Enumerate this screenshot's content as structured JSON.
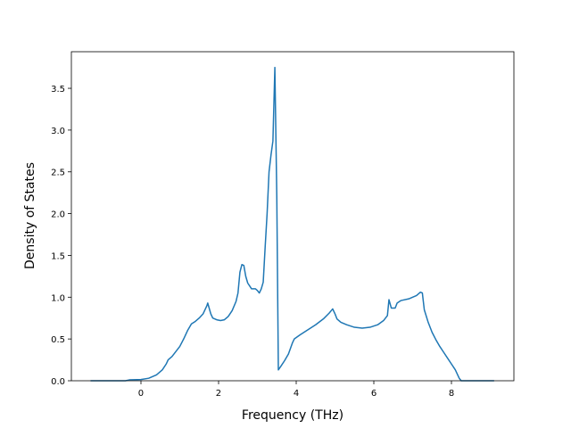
{
  "chart_data": {
    "type": "line",
    "x_label": "Frequency (THz)",
    "y_label": "Density of States",
    "x": [
      -1.3,
      -0.4,
      -0.3,
      0,
      0.2,
      0.4,
      0.55,
      0.65,
      0.7,
      0.8,
      0.9,
      1.0,
      1.1,
      1.2,
      1.3,
      1.4,
      1.5,
      1.6,
      1.7,
      1.72,
      1.8,
      1.85,
      1.95,
      2.05,
      2.15,
      2.25,
      2.35,
      2.45,
      2.5,
      2.55,
      2.6,
      2.65,
      2.7,
      2.75,
      2.85,
      2.95,
      3.0,
      3.05,
      3.1,
      3.15,
      3.2,
      3.25,
      3.3,
      3.35,
      3.4,
      3.45,
      3.5,
      3.54,
      3.6,
      3.7,
      3.8,
      3.9,
      3.95,
      4.1,
      4.3,
      4.5,
      4.7,
      4.85,
      4.94,
      5.0,
      5.05,
      5.15,
      5.3,
      5.5,
      5.7,
      5.9,
      6.1,
      6.25,
      6.35,
      6.39,
      6.45,
      6.55,
      6.6,
      6.7,
      6.9,
      7.0,
      7.1,
      7.2,
      7.25,
      7.3,
      7.4,
      7.5,
      7.6,
      7.7,
      7.8,
      7.9,
      8.0,
      8.1,
      8.2,
      8.25,
      9.1
    ],
    "series": [
      {
        "color": "#1f77b4",
        "values": [
          0,
          0,
          0.01,
          0.015,
          0.03,
          0.07,
          0.13,
          0.2,
          0.25,
          0.29,
          0.35,
          0.41,
          0.5,
          0.6,
          0.68,
          0.71,
          0.75,
          0.8,
          0.9,
          0.93,
          0.8,
          0.75,
          0.73,
          0.72,
          0.73,
          0.77,
          0.84,
          0.95,
          1.05,
          1.3,
          1.39,
          1.38,
          1.25,
          1.17,
          1.1,
          1.1,
          1.08,
          1.05,
          1.1,
          1.18,
          1.6,
          2.0,
          2.5,
          2.7,
          2.87,
          3.75,
          2.2,
          0.13,
          0.17,
          0.24,
          0.32,
          0.45,
          0.5,
          0.55,
          0.61,
          0.67,
          0.74,
          0.81,
          0.86,
          0.8,
          0.74,
          0.7,
          0.67,
          0.64,
          0.63,
          0.64,
          0.67,
          0.72,
          0.78,
          0.97,
          0.87,
          0.87,
          0.93,
          0.96,
          0.98,
          1.0,
          1.02,
          1.06,
          1.05,
          0.85,
          0.7,
          0.58,
          0.49,
          0.41,
          0.34,
          0.27,
          0.2,
          0.13,
          0.03,
          0,
          0
        ]
      }
    ],
    "xlim": [
      -1.793,
      9.609
    ],
    "ylim": [
      0,
      3.938
    ],
    "xticks": [
      0,
      2,
      4,
      6,
      8
    ],
    "yticks": [
      {
        "value": 0,
        "label": "0.0"
      },
      0.5,
      {
        "value": 1,
        "label": "1.0"
      },
      1.5,
      {
        "value": 2,
        "label": "2.0"
      },
      2.5,
      {
        "value": 3,
        "label": "3.0"
      },
      3.5
    ]
  }
}
